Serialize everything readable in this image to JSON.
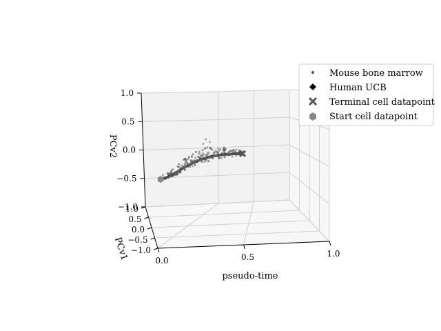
{
  "chart_data": {
    "type": "scatter",
    "projection": "3d",
    "title": "",
    "axes": {
      "x": {
        "label": "pseudo-time",
        "range": [
          0,
          1
        ],
        "ticks": [
          "0.0",
          "0.5",
          "1.0"
        ]
      },
      "y": {
        "label": "PCv1",
        "range": [
          -1,
          1
        ],
        "ticks": [
          "−1.0",
          "−0.5",
          "0.0",
          "0.5",
          "1.0"
        ]
      },
      "z": {
        "label": "PCv2",
        "range": [
          -1,
          1
        ],
        "ticks": [
          "−1.0",
          "−0.5",
          "0.0",
          "0.5",
          "1.0"
        ]
      }
    },
    "grid": true,
    "legend_position": "top-right",
    "colors": {
      "points": "#555555",
      "start": "#888888",
      "terminal": "#555555",
      "pane": "#f2f2f2",
      "grid": "#d0d0d0"
    },
    "series": [
      {
        "name": "Mouse bone marrow",
        "marker": "point"
      },
      {
        "name": "Human UCB",
        "marker": "diamond"
      },
      {
        "name": "Terminal cell datapoint",
        "marker": "x"
      },
      {
        "name": "Start cell datapoint",
        "marker": "hexagon"
      }
    ],
    "trajectory": {
      "t": [
        0.0,
        0.05,
        0.1,
        0.15,
        0.2,
        0.25,
        0.3,
        0.35,
        0.4,
        0.45,
        0.5,
        0.55,
        0.6,
        0.65,
        0.7,
        0.75,
        0.8,
        0.85,
        0.9,
        0.95,
        1.0
      ],
      "pcv2": [
        -0.52,
        -0.5,
        -0.47,
        -0.43,
        -0.39,
        -0.34,
        -0.3,
        -0.26,
        -0.22,
        -0.19,
        -0.16,
        -0.14,
        -0.12,
        -0.1,
        -0.09,
        -0.08,
        -0.07,
        -0.07,
        -0.06,
        -0.06,
        -0.06
      ]
    },
    "start_point": {
      "t": 0.0,
      "pcv2": -0.52
    },
    "terminal_point": {
      "t": 1.0,
      "pcv2": -0.06
    }
  }
}
